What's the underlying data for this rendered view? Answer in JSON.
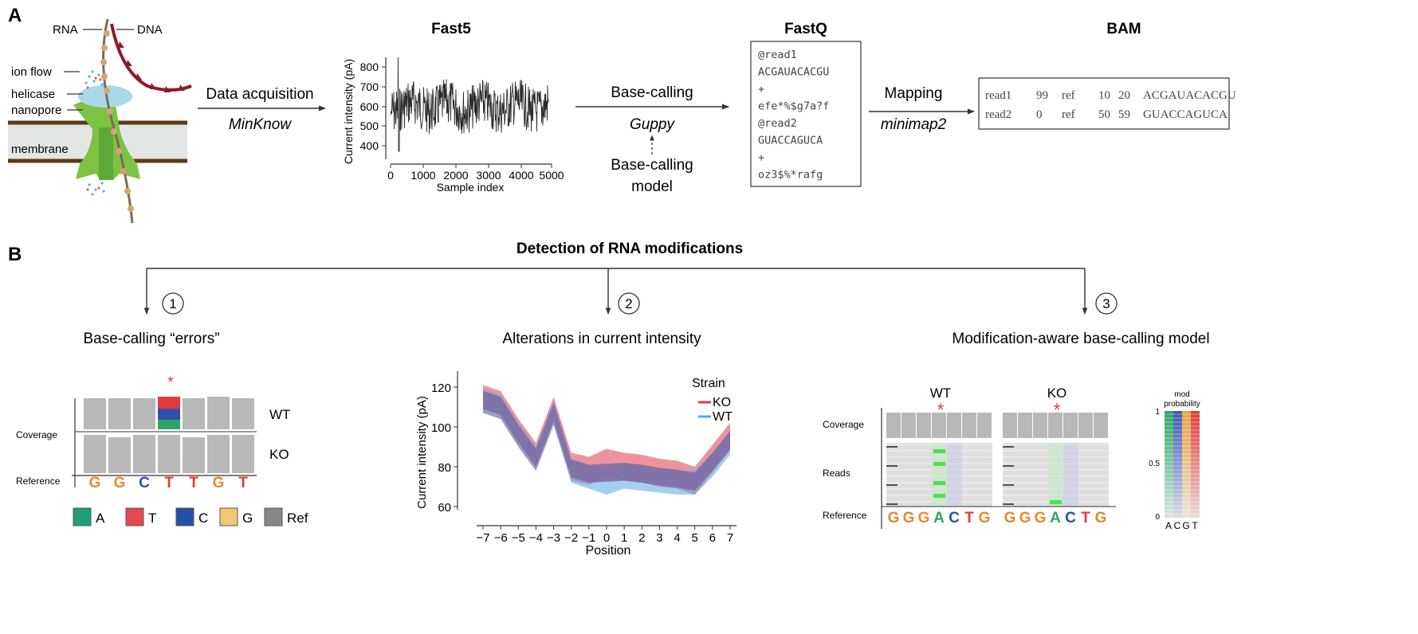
{
  "panel_a": {
    "letter": "A",
    "pore_labels": {
      "rna": "RNA",
      "dna": "DNA",
      "ion_flow": "ion flow",
      "helicase": "helicase",
      "nanopore": "nanopore",
      "membrane": "membrane"
    },
    "step1": {
      "label": "Data acquisition",
      "tool": "MinKnow"
    },
    "fast5": {
      "title": "Fast5",
      "ylabel": "Current intensity (pA)",
      "xlabel": "Sample index",
      "yticks": [
        "800",
        "700",
        "600",
        "500",
        "400"
      ],
      "xticks": [
        "0",
        "1000",
        "2000",
        "3000",
        "4000",
        "5000"
      ]
    },
    "step2": {
      "label": "Base-calling",
      "tool": "Guppy",
      "model_line1": "Base-calling",
      "model_line2": "model"
    },
    "fastq": {
      "title": "FastQ",
      "lines": [
        "@read1",
        "ACGAUACACGU",
        "+",
        "efe*%$g7a?f",
        "@read2",
        "GUACCAGUCA",
        "+",
        "oz3$%*rafg"
      ]
    },
    "step3": {
      "label": "Mapping",
      "tool": "minimap2"
    },
    "bam": {
      "title": "BAM",
      "rows": [
        [
          "read1",
          "99",
          "ref",
          "10",
          "20",
          "ACGAUACACGU"
        ],
        [
          "read2",
          "0",
          "ref",
          "50",
          "59",
          "GUACCAGUCA"
        ]
      ]
    }
  },
  "panel_b": {
    "letter": "B",
    "title": "Detection of RNA modifications",
    "methods": [
      {
        "num": "1",
        "label": "Base-calling “errors”"
      },
      {
        "num": "2",
        "label": "Alterations in current intensity"
      },
      {
        "num": "3",
        "label": "Modification-aware base-calling model"
      }
    ],
    "m1": {
      "star": "*",
      "coverage_label": "Coverage",
      "wt": "WT",
      "ko": "KO",
      "reference_label": "Reference",
      "bases": [
        "G",
        "G",
        "C",
        "T",
        "T",
        "G",
        "T"
      ],
      "legend": [
        "A",
        "T",
        "C",
        "G",
        "Ref"
      ]
    },
    "m2": {
      "ylabel": "Current intensity (pA)",
      "xlabel": "Position",
      "yticks": [
        "120",
        "100",
        "80",
        "60"
      ],
      "xticks": [
        "−7",
        "−6",
        "−5",
        "−4",
        "−3",
        "−2",
        "−1",
        "0",
        "1",
        "2",
        "3",
        "4",
        "5",
        "6",
        "7"
      ],
      "legend_title": "Strain",
      "legend": [
        "KO",
        "WT"
      ]
    },
    "m3": {
      "wt": "WT",
      "ko": "KO",
      "star": "*",
      "coverage_label": "Coverage",
      "reads_label": "Reads",
      "reference_label": "Reference",
      "bases": [
        "G",
        "G",
        "G",
        "A",
        "C",
        "T",
        "G"
      ],
      "bar_title_line1": "mod",
      "bar_title_line2": "probability",
      "bar_ticks": [
        "1",
        "0.5",
        "0"
      ],
      "bar_letters": [
        "A",
        "C",
        "G",
        "T"
      ]
    }
  },
  "colors": {
    "A": "#2aa66a",
    "T": "#e23a3a",
    "C": "#2f4fb0",
    "G": "#e58a2e",
    "legend_A": "#1f9e7a",
    "legend_T": "#e8474f",
    "legend_C": "#2450a8",
    "legend_G": "#f2c776",
    "legend_Ref": "#888888",
    "ko": "#e03a4a",
    "wt": "#5aa8e0",
    "overlap": "#7d6aa5",
    "dna": "#8b1a2b",
    "membrane_line": "#5a3a1a",
    "membrane_fill": "#e4e6e6",
    "pore_green": "#7cc243",
    "helicase": "#a8d8ea",
    "grey": "#b8b8b8"
  }
}
